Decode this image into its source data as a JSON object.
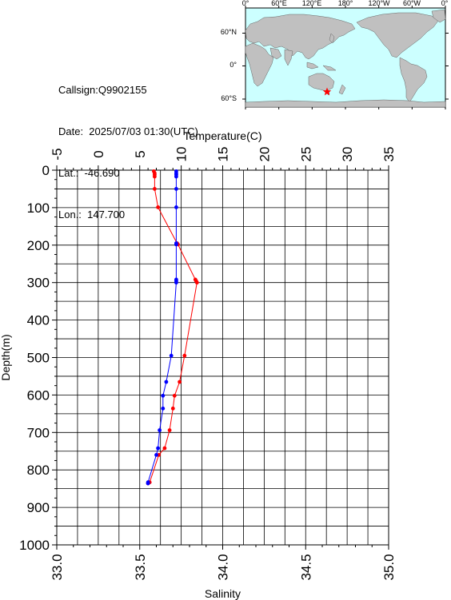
{
  "info": {
    "callsign": "Callsign:Q9902155",
    "date": "Date:  2025/07/03 01:30(UTC)",
    "lat": "Lat.:  -46.690",
    "lon": "Lon.:  147.700"
  },
  "map": {
    "lon_labels": [
      "0°",
      "60°E",
      "120°E",
      "180°",
      "120°W",
      "60°W",
      "0°"
    ],
    "lat_labels": [
      "60°N",
      "0°",
      "60°S"
    ],
    "ocean_color": "#ccffff",
    "land_color": "#c0c0c0",
    "marker": {
      "lat": -46.69,
      "lon": 147.7,
      "color": "#ff0000",
      "icon": "star-icon"
    }
  },
  "chart_data": {
    "type": "line",
    "y_axis": {
      "label": "Depth(m)",
      "range": [
        0,
        1000
      ],
      "inverted": true,
      "ticks": [
        "0",
        "100",
        "200",
        "300",
        "400",
        "500",
        "600",
        "700",
        "800",
        "900",
        "1000"
      ]
    },
    "x_axis_top": {
      "label": "Temperature(C)",
      "range": [
        -5,
        35
      ],
      "ticks": [
        "-5",
        "0",
        "5",
        "10",
        "15",
        "20",
        "25",
        "30",
        "35"
      ]
    },
    "x_axis_bottom": {
      "label": "Salinity",
      "range": [
        33.0,
        35.0
      ],
      "ticks": [
        "33.0",
        "33.5",
        "34.0",
        "34.5",
        "35.0"
      ]
    },
    "grid": true,
    "series": [
      {
        "color": "#ff0000",
        "axis": "top",
        "points": [
          [
            6.7,
            3
          ],
          [
            6.8,
            8
          ],
          [
            6.8,
            12
          ],
          [
            6.8,
            17
          ],
          [
            6.8,
            50
          ],
          [
            7.2,
            99
          ],
          [
            9.5,
            195
          ],
          [
            9.6,
            198
          ],
          [
            11.7,
            292
          ],
          [
            11.8,
            296
          ],
          [
            11.9,
            300
          ],
          [
            10.4,
            495
          ],
          [
            9.8,
            565
          ],
          [
            9.2,
            602
          ],
          [
            9.0,
            636
          ],
          [
            8.6,
            694
          ],
          [
            8.0,
            742
          ],
          [
            7.3,
            760
          ],
          [
            6.2,
            833
          ],
          [
            6.0,
            836
          ]
        ]
      },
      {
        "color": "#0000ff",
        "axis": "bottom",
        "points": [
          [
            33.72,
            3
          ],
          [
            33.72,
            8
          ],
          [
            33.72,
            12
          ],
          [
            33.72,
            17
          ],
          [
            33.72,
            50
          ],
          [
            33.72,
            99
          ],
          [
            33.72,
            195
          ],
          [
            33.72,
            198
          ],
          [
            33.72,
            292
          ],
          [
            33.72,
            296
          ],
          [
            33.72,
            300
          ],
          [
            33.69,
            495
          ],
          [
            33.66,
            565
          ],
          [
            33.64,
            602
          ],
          [
            33.64,
            636
          ],
          [
            33.62,
            694
          ],
          [
            33.61,
            742
          ],
          [
            33.6,
            760
          ],
          [
            33.55,
            833
          ],
          [
            33.55,
            836
          ]
        ]
      }
    ]
  }
}
